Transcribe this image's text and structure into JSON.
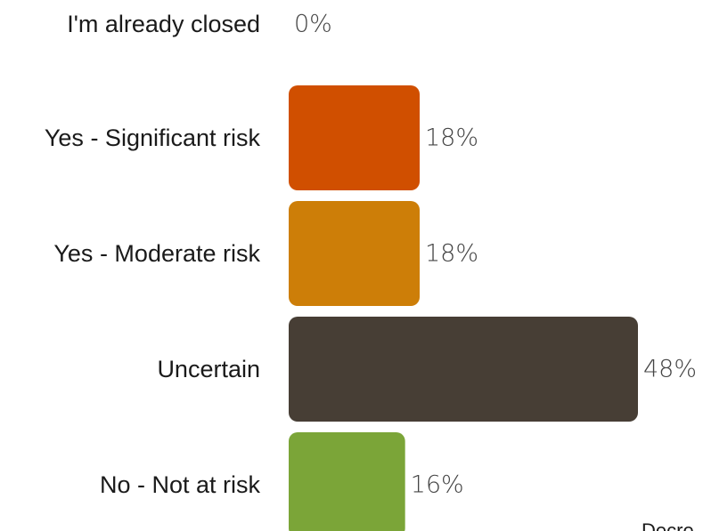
{
  "chart_data": {
    "type": "bar",
    "orientation": "horizontal",
    "categories": [
      "I'm already closed",
      "Yes - Significant risk",
      "Yes - Moderate risk",
      "Uncertain",
      "No - Not at risk"
    ],
    "values": [
      0,
      18,
      18,
      48,
      16
    ],
    "value_labels": [
      "0%",
      "18%",
      "18%",
      "48%",
      "16%"
    ],
    "colors": [
      "#cccccc",
      "#d04f00",
      "#cd7e08",
      "#473e35",
      "#7ba538"
    ],
    "xlim": [
      0,
      48
    ],
    "grid": false,
    "legend": "none",
    "clipped_text": "Decre"
  }
}
